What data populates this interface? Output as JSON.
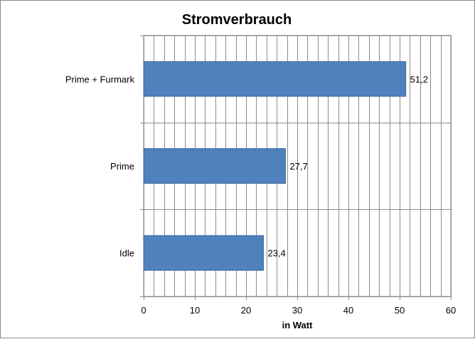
{
  "chart_data": {
    "type": "bar",
    "orientation": "horizontal",
    "title": "Stromverbrauch",
    "xlabel": "in Watt",
    "ylabel": "",
    "xlim": [
      0,
      60
    ],
    "x_ticks": [
      "0",
      "10",
      "20",
      "30",
      "40",
      "50",
      "60"
    ],
    "categories": [
      "Prime + Furmark",
      "Prime",
      "Idle"
    ],
    "values": [
      51.2,
      27.7,
      23.4
    ],
    "data_labels": [
      "51,2",
      "27,7",
      "23,4"
    ],
    "bar_color": "#4f81bd",
    "grid": true,
    "minor_grid": true,
    "legend": "none"
  }
}
